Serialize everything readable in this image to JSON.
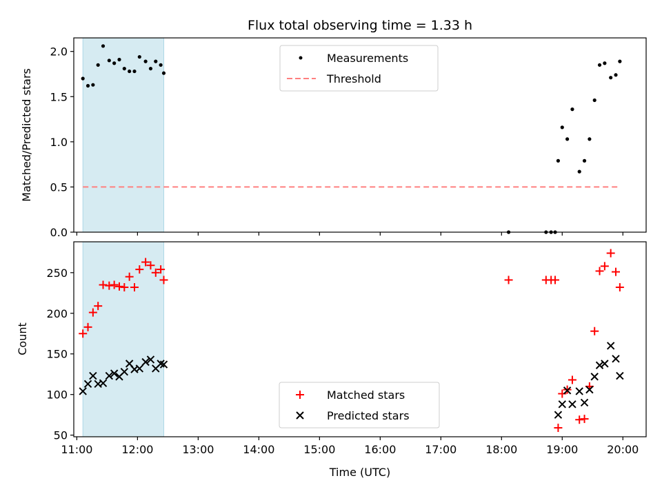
{
  "chart_data": [
    {
      "type": "scatter",
      "title": "Flux total observing time = 1.33 h",
      "xlabel": "",
      "ylabel": "Matched/Predicted stars",
      "xlim": [
        "10:57",
        "20:23"
      ],
      "ylim": [
        0,
        2.15
      ],
      "yticks": [
        0.0,
        0.5,
        1.0,
        1.5,
        2.0
      ],
      "ytick_labels": [
        "0.0",
        "0.5",
        "1.0",
        "1.5",
        "2.0"
      ],
      "grid": false,
      "legend_position": "top-center",
      "shaded_span": {
        "x_start": "11:06",
        "x_end": "12:26",
        "color": "#add8e6"
      },
      "series": [
        {
          "name": "Measurements",
          "marker": "dot",
          "color": "#000000",
          "points": [
            {
              "x": "11:06",
              "y": 1.7
            },
            {
              "x": "11:11",
              "y": 1.62
            },
            {
              "x": "11:16",
              "y": 1.63
            },
            {
              "x": "11:21",
              "y": 1.85
            },
            {
              "x": "11:26",
              "y": 2.06
            },
            {
              "x": "11:32",
              "y": 1.9
            },
            {
              "x": "11:37",
              "y": 1.87
            },
            {
              "x": "11:42",
              "y": 1.91
            },
            {
              "x": "11:47",
              "y": 1.81
            },
            {
              "x": "11:52",
              "y": 1.78
            },
            {
              "x": "11:57",
              "y": 1.78
            },
            {
              "x": "12:02",
              "y": 1.94
            },
            {
              "x": "12:08",
              "y": 1.89
            },
            {
              "x": "12:13",
              "y": 1.81
            },
            {
              "x": "12:18",
              "y": 1.89
            },
            {
              "x": "12:23",
              "y": 1.85
            },
            {
              "x": "12:26",
              "y": 1.76
            },
            {
              "x": "18:07",
              "y": 0.0
            },
            {
              "x": "18:44",
              "y": 0.0
            },
            {
              "x": "18:49",
              "y": 0.0
            },
            {
              "x": "18:53",
              "y": 0.0
            },
            {
              "x": "18:56",
              "y": 0.79
            },
            {
              "x": "19:00",
              "y": 1.16
            },
            {
              "x": "19:05",
              "y": 1.03
            },
            {
              "x": "19:10",
              "y": 1.36
            },
            {
              "x": "19:17",
              "y": 0.67
            },
            {
              "x": "19:22",
              "y": 0.79
            },
            {
              "x": "19:27",
              "y": 1.03
            },
            {
              "x": "19:32",
              "y": 1.46
            },
            {
              "x": "19:37",
              "y": 1.85
            },
            {
              "x": "19:42",
              "y": 1.87
            },
            {
              "x": "19:48",
              "y": 1.71
            },
            {
              "x": "19:53",
              "y": 1.74
            },
            {
              "x": "19:57",
              "y": 1.89
            }
          ]
        },
        {
          "name": "Threshold",
          "marker": "dashed-line",
          "color": "#ff7f7f",
          "points": [
            {
              "x": "11:06",
              "y": 0.5
            },
            {
              "x": "19:57",
              "y": 0.5
            }
          ]
        }
      ]
    },
    {
      "type": "scatter",
      "title": "",
      "xlabel": "Time (UTC)",
      "ylabel": "Count",
      "xlim": [
        "10:57",
        "20:23"
      ],
      "ylim": [
        48,
        288
      ],
      "yticks": [
        50,
        100,
        150,
        200,
        250
      ],
      "ytick_labels": [
        "50",
        "100",
        "150",
        "200",
        "250"
      ],
      "xticks": [
        "11:00",
        "12:00",
        "13:00",
        "14:00",
        "15:00",
        "16:00",
        "17:00",
        "18:00",
        "19:00",
        "20:00"
      ],
      "grid": false,
      "legend_position": "bottom-center",
      "shaded_span": {
        "x_start": "11:06",
        "x_end": "12:26",
        "color": "#add8e6"
      },
      "series": [
        {
          "name": "Matched stars",
          "marker": "plus",
          "color": "#ff0000",
          "points": [
            {
              "x": "11:06",
              "y": 175
            },
            {
              "x": "11:11",
              "y": 183
            },
            {
              "x": "11:16",
              "y": 201
            },
            {
              "x": "11:21",
              "y": 209
            },
            {
              "x": "11:26",
              "y": 235
            },
            {
              "x": "11:32",
              "y": 234
            },
            {
              "x": "11:37",
              "y": 235
            },
            {
              "x": "11:42",
              "y": 233
            },
            {
              "x": "11:47",
              "y": 232
            },
            {
              "x": "11:52",
              "y": 245
            },
            {
              "x": "11:57",
              "y": 232
            },
            {
              "x": "12:02",
              "y": 254
            },
            {
              "x": "12:08",
              "y": 263
            },
            {
              "x": "12:13",
              "y": 259
            },
            {
              "x": "12:18",
              "y": 250
            },
            {
              "x": "12:23",
              "y": 254
            },
            {
              "x": "12:26",
              "y": 241
            },
            {
              "x": "18:07",
              "y": 241
            },
            {
              "x": "18:44",
              "y": 241
            },
            {
              "x": "18:49",
              "y": 241
            },
            {
              "x": "18:53",
              "y": 241
            },
            {
              "x": "18:56",
              "y": 59
            },
            {
              "x": "19:00",
              "y": 101
            },
            {
              "x": "19:05",
              "y": 106
            },
            {
              "x": "19:10",
              "y": 118
            },
            {
              "x": "19:17",
              "y": 69
            },
            {
              "x": "19:22",
              "y": 70
            },
            {
              "x": "19:27",
              "y": 110
            },
            {
              "x": "19:32",
              "y": 178
            },
            {
              "x": "19:37",
              "y": 252
            },
            {
              "x": "19:42",
              "y": 258
            },
            {
              "x": "19:48",
              "y": 274
            },
            {
              "x": "19:53",
              "y": 251
            },
            {
              "x": "19:57",
              "y": 232
            }
          ]
        },
        {
          "name": "Predicted stars",
          "marker": "x",
          "color": "#000000",
          "points": [
            {
              "x": "11:06",
              "y": 104
            },
            {
              "x": "11:11",
              "y": 113
            },
            {
              "x": "11:16",
              "y": 123
            },
            {
              "x": "11:21",
              "y": 113
            },
            {
              "x": "11:26",
              "y": 114
            },
            {
              "x": "11:32",
              "y": 123
            },
            {
              "x": "11:37",
              "y": 126
            },
            {
              "x": "11:42",
              "y": 122
            },
            {
              "x": "11:47",
              "y": 128
            },
            {
              "x": "11:52",
              "y": 138
            },
            {
              "x": "11:57",
              "y": 131
            },
            {
              "x": "12:02",
              "y": 132
            },
            {
              "x": "12:08",
              "y": 140
            },
            {
              "x": "12:13",
              "y": 143
            },
            {
              "x": "12:18",
              "y": 132
            },
            {
              "x": "12:23",
              "y": 138
            },
            {
              "x": "12:26",
              "y": 137
            },
            {
              "x": "18:56",
              "y": 75
            },
            {
              "x": "19:00",
              "y": 88
            },
            {
              "x": "19:05",
              "y": 105
            },
            {
              "x": "19:10",
              "y": 88
            },
            {
              "x": "19:17",
              "y": 104
            },
            {
              "x": "19:22",
              "y": 90
            },
            {
              "x": "19:27",
              "y": 106
            },
            {
              "x": "19:32",
              "y": 122
            },
            {
              "x": "19:37",
              "y": 136
            },
            {
              "x": "19:42",
              "y": 138
            },
            {
              "x": "19:48",
              "y": 160
            },
            {
              "x": "19:53",
              "y": 144
            },
            {
              "x": "19:57",
              "y": 123
            }
          ]
        }
      ]
    }
  ]
}
